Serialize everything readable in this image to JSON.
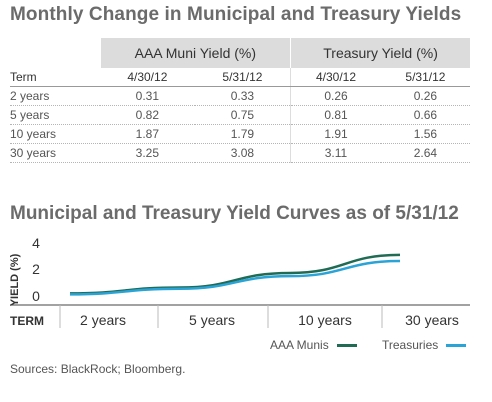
{
  "table": {
    "title": "Monthly Change in Municipal and Treasury Yields",
    "groups": [
      "AAA Muni Yield (%)",
      "Treasury Yield (%)"
    ],
    "columns": [
      "Term",
      "4/30/12",
      "5/31/12",
      "4/30/12",
      "5/31/12"
    ],
    "rows": [
      [
        "2 years",
        "0.31",
        "0.33",
        "0.26",
        "0.26"
      ],
      [
        "5 years",
        "0.82",
        "0.75",
        "0.81",
        "0.66"
      ],
      [
        "10 years",
        "1.87",
        "1.79",
        "1.91",
        "1.56"
      ],
      [
        "30 years",
        "3.25",
        "3.08",
        "3.11",
        "2.64"
      ]
    ]
  },
  "chart_data": {
    "type": "line",
    "title": "Municipal and Treasury Yield Curves as of 5/31/12",
    "xlabel": "TERM",
    "ylabel": "YIELD (%)",
    "categories": [
      "2 years",
      "5 years",
      "10 years",
      "30 years"
    ],
    "ylim": [
      0,
      4
    ],
    "yticks": [
      "4",
      "2",
      "0"
    ],
    "grid": false,
    "legend_position": "bottom-right",
    "series": [
      {
        "name": "AAA Munis",
        "values": [
          0.33,
          0.75,
          1.79,
          3.08
        ],
        "color": "#1f6b54"
      },
      {
        "name": "Treasuries",
        "values": [
          0.26,
          0.66,
          1.56,
          2.64
        ],
        "color": "#2aa3d6"
      }
    ]
  },
  "source": "Sources: BlackRock; Bloomberg."
}
